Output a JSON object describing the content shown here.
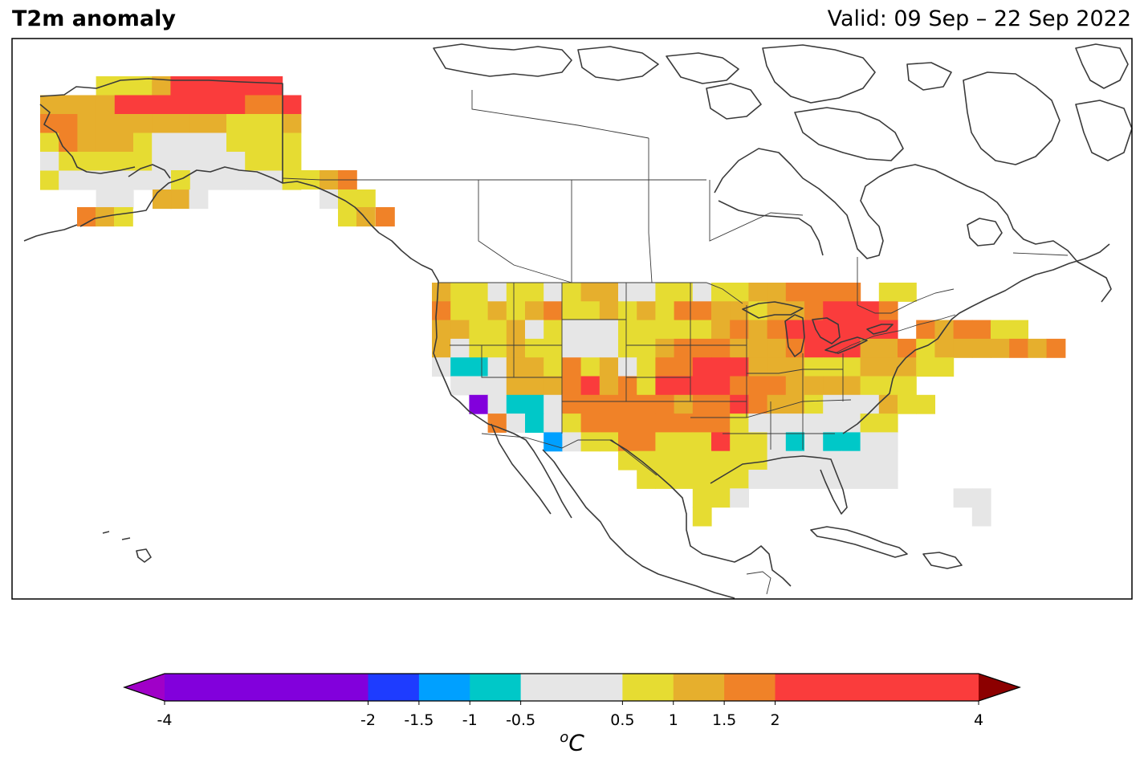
{
  "title": "T2m anomaly",
  "valid": "Valid: 09 Sep – 22 Sep 2022",
  "colorbar": {
    "unit_sup": "o",
    "unit_main": "C",
    "levels": [
      -4,
      -2,
      -1.5,
      -1,
      -0.5,
      0.5,
      1,
      1.5,
      2,
      4
    ],
    "tick_labels": [
      "-4",
      "-2",
      "-1.5",
      "-1",
      "-0.5",
      "0.5",
      "1",
      "1.5",
      "2",
      "4"
    ],
    "colors": [
      "#8200dc",
      "#1e3cff",
      "#00a0ff",
      "#00c8c8",
      "#e6e6e6",
      "#e6dc32",
      "#e6af2d",
      "#f08228",
      "#fa3c3c"
    ],
    "under_color": "#a000c8",
    "over_color": "#8c0000"
  },
  "legend_classes": {
    "V": "#8200dc",
    "B": "#00a0ff",
    "C": "#00c8c8",
    "W": "#e6e6e6",
    "Y": "#e6dc32",
    "G": "#e6af2d",
    "O": "#f08228",
    "R": "#fa3c3c"
  }
}
